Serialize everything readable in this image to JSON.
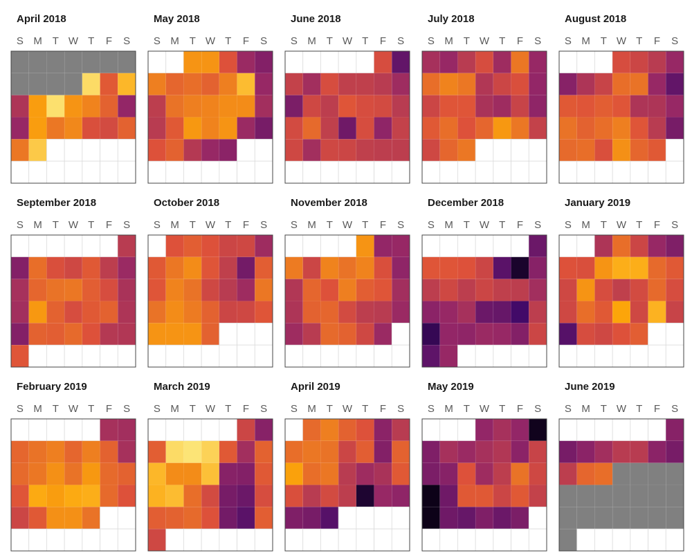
{
  "chart_data": {
    "type": "heatmap",
    "title": "",
    "weekday_labels": [
      "S",
      "M",
      "T",
      "W",
      "T",
      "F",
      "S"
    ],
    "color_scale": [
      "#000004",
      "#420a68",
      "#932667",
      "#dd513a",
      "#fca50a",
      "#fcffa4"
    ],
    "missing_color": "#808080",
    "legend": "none",
    "months": [
      {
        "title": "April 2018",
        "start_weekday": 0,
        "days": 30,
        "values": [
          null,
          null,
          null,
          null,
          null,
          null,
          null,
          null,
          null,
          null,
          null,
          0.92,
          0.62,
          0.84,
          0.47,
          0.78,
          0.93,
          0.76,
          0.72,
          0.64,
          0.4,
          0.41,
          0.78,
          0.69,
          0.73,
          0.59,
          0.57,
          0.64,
          0.69,
          0.88
        ]
      },
      {
        "title": "May 2018",
        "start_weekday": 2,
        "days": 31,
        "values": [
          0.76,
          0.76,
          0.6,
          0.42,
          0.36,
          0.71,
          0.65,
          0.67,
          0.64,
          0.71,
          0.85,
          0.41,
          0.51,
          0.68,
          0.71,
          0.72,
          0.74,
          0.74,
          0.44,
          0.5,
          0.62,
          0.77,
          0.72,
          0.76,
          0.42,
          0.33,
          0.6,
          0.64,
          0.49,
          0.41,
          0.38
        ]
      },
      {
        "title": "June 2018",
        "start_weekday": 5,
        "days": 30,
        "values": [
          0.58,
          0.28,
          0.53,
          0.44,
          0.58,
          0.52,
          0.52,
          0.5,
          0.43,
          0.34,
          0.56,
          0.51,
          0.61,
          0.58,
          0.57,
          0.5,
          0.57,
          0.66,
          0.52,
          0.31,
          0.58,
          0.39,
          0.53,
          0.56,
          0.44,
          0.56,
          0.55,
          0.52,
          0.51,
          0.51
        ]
      },
      {
        "title": "July 2018",
        "start_weekday": 0,
        "days": 31,
        "values": [
          0.45,
          0.41,
          0.5,
          0.58,
          0.43,
          0.69,
          0.41,
          0.67,
          0.72,
          0.69,
          0.48,
          0.55,
          0.59,
          0.4,
          0.55,
          0.61,
          0.61,
          0.46,
          0.43,
          0.54,
          0.39,
          0.62,
          0.67,
          0.6,
          0.65,
          0.77,
          0.69,
          0.53,
          0.56,
          0.65,
          0.69
        ]
      },
      {
        "title": "August 2018",
        "start_weekday": 3,
        "days": 31,
        "values": [
          0.58,
          0.55,
          0.5,
          0.41,
          0.37,
          0.47,
          0.54,
          0.67,
          0.68,
          0.41,
          0.28,
          0.62,
          0.61,
          0.63,
          0.61,
          0.47,
          0.47,
          0.41,
          0.68,
          0.64,
          0.67,
          0.71,
          0.61,
          0.5,
          0.33,
          0.66,
          0.67,
          0.59,
          0.75,
          0.65,
          0.62
        ]
      },
      {
        "title": "September 2018",
        "start_weekday": 6,
        "days": 30,
        "values": [
          0.5,
          0.36,
          0.67,
          0.59,
          0.56,
          0.62,
          0.51,
          0.42,
          0.45,
          0.65,
          0.68,
          0.69,
          0.63,
          0.58,
          0.46,
          0.44,
          0.77,
          0.64,
          0.58,
          0.62,
          0.64,
          0.47,
          0.36,
          0.64,
          0.63,
          0.66,
          0.6,
          0.49,
          0.48,
          0.61
        ]
      },
      {
        "title": "October 2018",
        "start_weekday": 1,
        "days": 31,
        "values": [
          0.6,
          0.63,
          0.6,
          0.55,
          0.56,
          0.43,
          0.62,
          0.69,
          0.74,
          0.61,
          0.52,
          0.32,
          0.63,
          0.61,
          0.72,
          0.68,
          0.56,
          0.5,
          0.43,
          0.69,
          0.68,
          0.74,
          0.7,
          0.64,
          0.55,
          0.56,
          0.61,
          0.76,
          0.76,
          0.76,
          0.64
        ]
      },
      {
        "title": "November 2018",
        "start_weekday": 4,
        "days": 30,
        "values": [
          0.76,
          0.4,
          0.41,
          0.7,
          0.55,
          0.72,
          0.68,
          0.72,
          0.59,
          0.39,
          0.48,
          0.65,
          0.6,
          0.71,
          0.63,
          0.61,
          0.44,
          0.47,
          0.64,
          0.65,
          0.57,
          0.51,
          0.5,
          0.42,
          0.43,
          0.5,
          0.66,
          0.64,
          0.56,
          0.42
        ]
      },
      {
        "title": "December 2018",
        "start_weekday": 6,
        "days": 31,
        "values": [
          0.3,
          0.61,
          0.61,
          0.6,
          0.55,
          0.26,
          0.08,
          0.37,
          0.51,
          0.56,
          0.51,
          0.55,
          0.52,
          0.51,
          0.44,
          0.38,
          0.41,
          0.45,
          0.3,
          0.29,
          0.2,
          0.51,
          0.16,
          0.4,
          0.39,
          0.42,
          0.41,
          0.36,
          0.55,
          0.27,
          0.41
        ]
      },
      {
        "title": "January 2019",
        "start_weekday": 2,
        "days": 31,
        "values": [
          0.47,
          0.67,
          0.55,
          0.41,
          0.35,
          0.6,
          0.59,
          0.76,
          0.82,
          0.82,
          0.66,
          0.62,
          0.56,
          0.76,
          0.58,
          0.52,
          0.57,
          0.66,
          0.58,
          0.56,
          0.67,
          0.62,
          0.8,
          0.56,
          0.83,
          0.54,
          0.25,
          0.58,
          0.56,
          0.6,
          0.63
        ]
      },
      {
        "title": "February 2019",
        "start_weekday": 5,
        "days": 28,
        "values": [
          0.45,
          0.44,
          0.65,
          0.68,
          0.71,
          0.65,
          0.71,
          0.64,
          0.45,
          0.66,
          0.69,
          0.75,
          0.68,
          0.77,
          0.66,
          0.64,
          0.61,
          0.81,
          0.78,
          0.81,
          0.82,
          0.66,
          0.6,
          0.55,
          0.62,
          0.75,
          0.75,
          0.68
        ]
      },
      {
        "title": "March 2019",
        "start_weekday": 5,
        "days": 31,
        "values": [
          0.55,
          0.37,
          0.63,
          0.92,
          0.94,
          0.9,
          0.62,
          0.44,
          0.64,
          0.84,
          0.74,
          0.74,
          0.86,
          0.37,
          0.36,
          0.62,
          0.83,
          0.85,
          0.67,
          0.57,
          0.33,
          0.3,
          0.58,
          0.63,
          0.64,
          0.66,
          0.6,
          0.32,
          0.26,
          0.63,
          0.56
        ]
      },
      {
        "title": "April 2019",
        "start_weekday": 1,
        "days": 30,
        "values": [
          0.66,
          0.71,
          0.64,
          0.6,
          0.38,
          0.5,
          0.67,
          0.69,
          0.68,
          0.55,
          0.63,
          0.36,
          0.64,
          0.79,
          0.67,
          0.69,
          0.5,
          0.43,
          0.46,
          0.62,
          0.59,
          0.5,
          0.57,
          0.51,
          0.09,
          0.41,
          0.39,
          0.35,
          0.33,
          0.25
        ]
      },
      {
        "title": "May 2019",
        "start_weekday": 3,
        "days": 31,
        "values": [
          0.4,
          0.45,
          0.4,
          0.05,
          0.35,
          0.45,
          0.42,
          0.45,
          0.48,
          0.38,
          0.54,
          0.34,
          0.37,
          0.6,
          0.43,
          0.51,
          0.68,
          0.56,
          0.04,
          0.31,
          0.62,
          0.62,
          0.55,
          0.62,
          0.53,
          0.04,
          0.31,
          0.29,
          0.35,
          0.3,
          0.34
        ]
      },
      {
        "title": "June 2019",
        "start_weekday": 6,
        "days": 30,
        "values": [
          0.37,
          0.33,
          0.38,
          0.44,
          0.5,
          0.5,
          0.38,
          0.33,
          0.51,
          0.65,
          0.67,
          null,
          null,
          null,
          null,
          null,
          null,
          null,
          null,
          null,
          null,
          null,
          null,
          null,
          null,
          null,
          null,
          null,
          null,
          null
        ]
      }
    ]
  }
}
